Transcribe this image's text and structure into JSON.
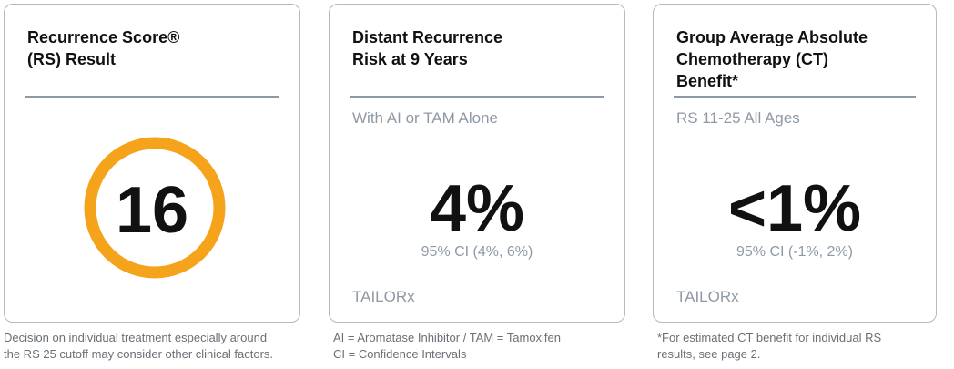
{
  "cards": [
    {
      "title": [
        "Recurrence Score®",
        "(RS) Result"
      ],
      "value": "16",
      "footnote": [
        "Decision on individual treatment especially around",
        "the RS 25 cutoff may consider other clinical factors."
      ]
    },
    {
      "title": [
        "Distant Recurrence",
        "Risk at 9 Years"
      ],
      "subtitle": "With AI or TAM Alone",
      "value": "4%",
      "ci": "95% CI (4%, 6%)",
      "source": "TAILORx",
      "footnote": [
        "AI = Aromatase Inhibitor / TAM = Tamoxifen",
        "CI = Confidence Intervals"
      ]
    },
    {
      "title": [
        "Group Average Absolute",
        "Chemotherapy (CT)",
        "Benefit*"
      ],
      "subtitle": "RS 11-25 All Ages",
      "value": "<1%",
      "ci": "95% CI (-1%, 2%)",
      "source": "TAILORx",
      "footnote": [
        "*For estimated CT benefit for individual RS",
        "results, see page 2."
      ]
    }
  ]
}
